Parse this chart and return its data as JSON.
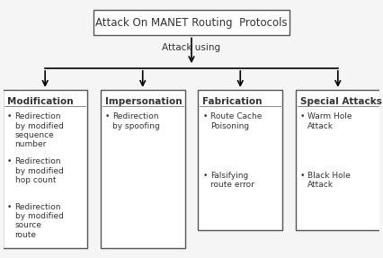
{
  "title_box": "Attack On MANET Routing  Protocols",
  "attack_using_label": "Attack using",
  "categories": [
    "Modification",
    "Impersonation",
    "Fabrication",
    "Special Attacks"
  ],
  "bullets": [
    [
      "Redirection\nby modified\nsequence\nnumber",
      "Redirection\nby modified\nhop count",
      "Redirection\nby modified\nsource\nroute"
    ],
    [
      "Redirection\nby spoofing"
    ],
    [
      "Route Cache\nPoisoning",
      "Falsifying\nroute error"
    ],
    [
      "Warm Hole\nAttack",
      "Black Hole\nAttack"
    ]
  ],
  "bg_color": "#f5f5f5",
  "box_color": "#ffffff",
  "border_color": "#555555",
  "text_color": "#333333",
  "title_fontsize": 8.5,
  "label_fontsize": 7.5,
  "bullet_fontsize": 6.5
}
